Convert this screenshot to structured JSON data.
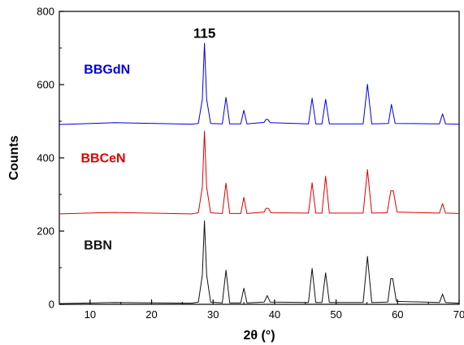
{
  "chart_data": {
    "type": "line",
    "title": "",
    "xlabel": "2θ (°)",
    "ylabel": "Counts",
    "xlim": [
      5,
      70
    ],
    "ylim": [
      0,
      800
    ],
    "xticks": [
      10,
      20,
      30,
      40,
      50,
      60,
      70
    ],
    "yticks": [
      0,
      200,
      400,
      600,
      800
    ],
    "grid": false,
    "annotations": [
      {
        "text": "115",
        "x": 28.6,
        "y": 715
      }
    ],
    "series": [
      {
        "name": "BBGdN",
        "color": "#0000dd",
        "label_at": [
          9.0,
          630
        ],
        "x": [
          5,
          13.9,
          26.5,
          27.6,
          28.25,
          28.6,
          28.95,
          29.6,
          31.5,
          32.1,
          32.7,
          34.5,
          35.0,
          35.5,
          38.3,
          38.6,
          38.9,
          39.3,
          45.5,
          46.1,
          46.7,
          47.7,
          48.3,
          48.9,
          54.4,
          55.1,
          55.8,
          58.5,
          59.0,
          59.6,
          66.8,
          67.3,
          67.8,
          70
        ],
        "y": [
          491,
          496,
          492,
          494,
          560,
          713,
          560,
          494,
          493,
          565,
          493,
          493,
          530,
          493,
          497,
          505,
          505,
          496,
          493,
          563,
          493,
          493,
          560,
          493,
          493,
          601,
          493,
          494,
          546,
          494,
          493,
          520,
          493,
          492
        ]
      },
      {
        "name": "BBCeN",
        "color": "#dd0000",
        "label_at": [
          8.5,
          388
        ],
        "x": [
          5,
          13.9,
          26.5,
          27.6,
          28.25,
          28.6,
          28.95,
          29.6,
          31.5,
          32.1,
          32.7,
          34.5,
          35.0,
          35.5,
          38.3,
          38.6,
          39.0,
          39.4,
          45.5,
          46.1,
          46.7,
          47.7,
          48.3,
          48.9,
          54.4,
          55.1,
          55.8,
          58.3,
          58.9,
          59.3,
          59.9,
          66.8,
          67.3,
          67.8,
          70
        ],
        "y": [
          247,
          251,
          247,
          250,
          320,
          473,
          320,
          250,
          248,
          331,
          248,
          248,
          292,
          248,
          252,
          262,
          262,
          250,
          249,
          332,
          249,
          249,
          350,
          249,
          249,
          368,
          249,
          250,
          310,
          310,
          252,
          249,
          275,
          249,
          248
        ]
      },
      {
        "name": "BBN",
        "color": "#111111",
        "label_at": [
          9.0,
          150
        ],
        "x": [
          5,
          13.9,
          26.5,
          27.6,
          28.25,
          28.6,
          28.95,
          29.6,
          31.5,
          32.1,
          32.7,
          34.5,
          35.0,
          35.5,
          38.3,
          38.8,
          39.3,
          45.5,
          46.1,
          46.7,
          47.7,
          48.3,
          48.9,
          54.4,
          55.1,
          55.8,
          58.4,
          58.9,
          59.2,
          59.8,
          66.8,
          67.3,
          67.8,
          70
        ],
        "y": [
          2,
          5,
          3,
          6,
          80,
          228,
          80,
          6,
          4,
          93,
          4,
          4,
          44,
          4,
          6,
          24,
          6,
          5,
          98,
          5,
          5,
          86,
          5,
          5,
          131,
          5,
          6,
          70,
          70,
          8,
          5,
          28,
          5,
          3
        ]
      }
    ]
  }
}
